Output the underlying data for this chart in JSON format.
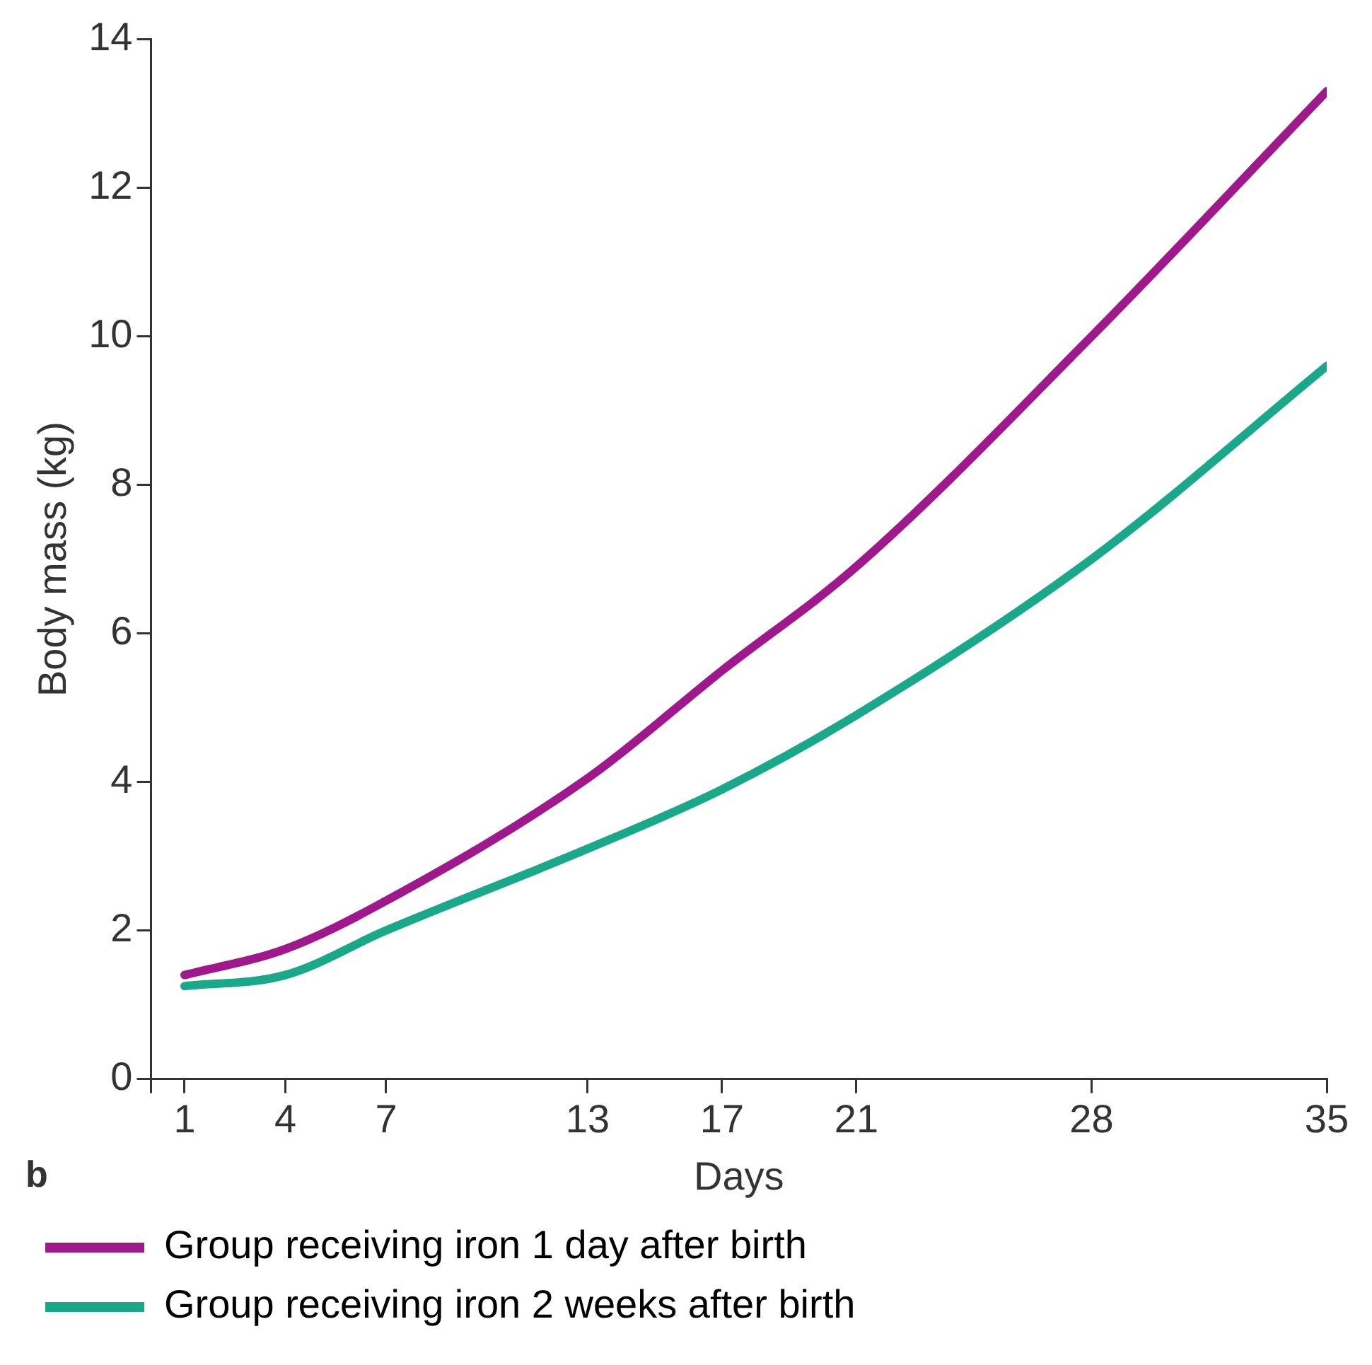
{
  "chart_data": {
    "type": "line",
    "xlabel": "Days",
    "ylabel": "Body mass (kg)",
    "annotations": [
      "b"
    ],
    "x": [
      1,
      4,
      7,
      13,
      17,
      21,
      28,
      35
    ],
    "series": [
      {
        "name": "Group receiving iron 1 day after birth",
        "color": "#a0198c",
        "values": [
          1.4,
          1.75,
          2.4,
          4.05,
          5.5,
          6.9,
          10.0,
          13.3
        ]
      },
      {
        "name": "Group receiving iron 2 weeks after birth",
        "color": "#1aa88a",
        "values": [
          1.25,
          1.4,
          2.0,
          3.1,
          3.9,
          4.9,
          7.0,
          9.6
        ]
      }
    ],
    "xlim": [
      0,
      35
    ],
    "xticks": [
      {
        "value": 0,
        "label": null
      },
      1,
      4,
      7,
      13,
      17,
      21,
      28,
      35
    ],
    "ylim": [
      0,
      14
    ],
    "yticks": [
      0,
      2,
      4,
      6,
      8,
      10,
      12,
      14
    ],
    "grid": false,
    "legend": "bottom",
    "marker": "none",
    "line_style": "solid"
  }
}
